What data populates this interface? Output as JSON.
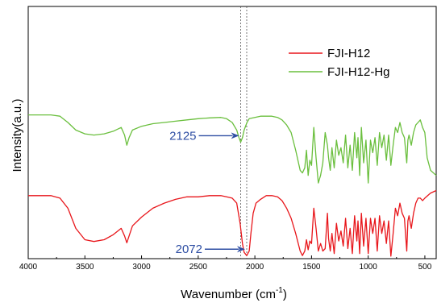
{
  "chart_data": {
    "type": "line",
    "title": "",
    "xlabel": "Wavenumber (cm",
    "xlabel_sup": "-1",
    "xlabel_end": ")",
    "ylabel": "Intensity(a.u.)",
    "xlim": [
      4000,
      400
    ],
    "x_reversed": true,
    "xticks": [
      4000,
      3500,
      3000,
      2500,
      2000,
      1500,
      1000,
      500
    ],
    "y_ticks_shown": false,
    "grid": false,
    "legend_position": "top-right",
    "series": [
      {
        "name": "FJI-H12",
        "color": "#e8161b",
        "points": [
          [
            4000,
            0.25
          ],
          [
            3800,
            0.25
          ],
          [
            3720,
            0.24
          ],
          [
            3650,
            0.2
          ],
          [
            3580,
            0.12
          ],
          [
            3500,
            0.075
          ],
          [
            3420,
            0.068
          ],
          [
            3330,
            0.075
          ],
          [
            3250,
            0.095
          ],
          [
            3180,
            0.12
          ],
          [
            3150,
            0.09
          ],
          [
            3130,
            0.063
          ],
          [
            3110,
            0.09
          ],
          [
            3080,
            0.13
          ],
          [
            3000,
            0.165
          ],
          [
            2900,
            0.2
          ],
          [
            2800,
            0.22
          ],
          [
            2700,
            0.235
          ],
          [
            2600,
            0.245
          ],
          [
            2500,
            0.245
          ],
          [
            2400,
            0.25
          ],
          [
            2300,
            0.25
          ],
          [
            2250,
            0.245
          ],
          [
            2200,
            0.24
          ],
          [
            2160,
            0.22
          ],
          [
            2130,
            0.14
          ],
          [
            2110,
            0.06
          ],
          [
            2095,
            0.025
          ],
          [
            2072,
            0.012
          ],
          [
            2050,
            0.03
          ],
          [
            2035,
            0.1
          ],
          [
            2015,
            0.18
          ],
          [
            1990,
            0.22
          ],
          [
            1950,
            0.235
          ],
          [
            1900,
            0.25
          ],
          [
            1850,
            0.25
          ],
          [
            1800,
            0.245
          ],
          [
            1760,
            0.23
          ],
          [
            1720,
            0.2
          ],
          [
            1680,
            0.16
          ],
          [
            1640,
            0.1
          ],
          [
            1600,
            0.03
          ],
          [
            1580,
            0.012
          ],
          [
            1560,
            0.03
          ],
          [
            1545,
            0.075
          ],
          [
            1530,
            0.035
          ],
          [
            1515,
            0.07
          ],
          [
            1500,
            0.06
          ],
          [
            1480,
            0.2
          ],
          [
            1460,
            0.12
          ],
          [
            1440,
            0.03
          ],
          [
            1420,
            0.06
          ],
          [
            1400,
            0.03
          ],
          [
            1380,
            0.04
          ],
          [
            1360,
            0.18
          ],
          [
            1350,
            0.08
          ],
          [
            1335,
            0.03
          ],
          [
            1320,
            0.1
          ],
          [
            1300,
            0.02
          ],
          [
            1280,
            0.14
          ],
          [
            1260,
            0.07
          ],
          [
            1240,
            0.11
          ],
          [
            1220,
            0.05
          ],
          [
            1200,
            0.16
          ],
          [
            1180,
            0.04
          ],
          [
            1160,
            0.12
          ],
          [
            1140,
            0.02
          ],
          [
            1120,
            0.17
          ],
          [
            1100,
            0.07
          ],
          [
            1090,
            0.15
          ],
          [
            1075,
            0.02
          ],
          [
            1060,
            0.18
          ],
          [
            1040,
            0.05
          ],
          [
            1020,
            0.16
          ],
          [
            1000,
            0.02
          ],
          [
            980,
            0.16
          ],
          [
            960,
            0.1
          ],
          [
            940,
            0.16
          ],
          [
            920,
            0.03
          ],
          [
            900,
            0.17
          ],
          [
            880,
            0.1
          ],
          [
            860,
            0.15
          ],
          [
            840,
            0.06
          ],
          [
            820,
            0.15
          ],
          [
            800,
            0.01
          ],
          [
            780,
            0.1
          ],
          [
            760,
            0.2
          ],
          [
            740,
            0.17
          ],
          [
            720,
            0.22
          ],
          [
            700,
            0.18
          ],
          [
            680,
            0.16
          ],
          [
            660,
            0.03
          ],
          [
            650,
            0.15
          ],
          [
            640,
            0.17
          ],
          [
            620,
            0.12
          ],
          [
            600,
            0.18
          ],
          [
            580,
            0.22
          ],
          [
            560,
            0.24
          ],
          [
            540,
            0.24
          ],
          [
            520,
            0.23
          ],
          [
            500,
            0.24
          ],
          [
            450,
            0.26
          ],
          [
            400,
            0.27
          ]
        ]
      },
      {
        "name": "FJI-H12-Hg",
        "color": "#6abf3d",
        "points": [
          [
            4000,
            0.57
          ],
          [
            3800,
            0.57
          ],
          [
            3720,
            0.565
          ],
          [
            3650,
            0.54
          ],
          [
            3580,
            0.51
          ],
          [
            3500,
            0.495
          ],
          [
            3420,
            0.49
          ],
          [
            3330,
            0.495
          ],
          [
            3250,
            0.505
          ],
          [
            3180,
            0.52
          ],
          [
            3150,
            0.49
          ],
          [
            3130,
            0.45
          ],
          [
            3110,
            0.48
          ],
          [
            3080,
            0.51
          ],
          [
            3000,
            0.525
          ],
          [
            2900,
            0.535
          ],
          [
            2800,
            0.54
          ],
          [
            2700,
            0.545
          ],
          [
            2600,
            0.55
          ],
          [
            2500,
            0.555
          ],
          [
            2400,
            0.558
          ],
          [
            2300,
            0.56
          ],
          [
            2250,
            0.555
          ],
          [
            2200,
            0.54
          ],
          [
            2160,
            0.51
          ],
          [
            2140,
            0.48
          ],
          [
            2125,
            0.462
          ],
          [
            2110,
            0.48
          ],
          [
            2095,
            0.51
          ],
          [
            2070,
            0.54
          ],
          [
            2050,
            0.555
          ],
          [
            2000,
            0.56
          ],
          [
            1950,
            0.565
          ],
          [
            1900,
            0.565
          ],
          [
            1850,
            0.565
          ],
          [
            1800,
            0.56
          ],
          [
            1760,
            0.55
          ],
          [
            1720,
            0.53
          ],
          [
            1680,
            0.5
          ],
          [
            1640,
            0.43
          ],
          [
            1600,
            0.35
          ],
          [
            1580,
            0.34
          ],
          [
            1560,
            0.36
          ],
          [
            1545,
            0.43
          ],
          [
            1530,
            0.33
          ],
          [
            1515,
            0.39
          ],
          [
            1500,
            0.37
          ],
          [
            1480,
            0.52
          ],
          [
            1460,
            0.4
          ],
          [
            1440,
            0.3
          ],
          [
            1420,
            0.33
          ],
          [
            1400,
            0.38
          ],
          [
            1380,
            0.5
          ],
          [
            1360,
            0.45
          ],
          [
            1350,
            0.4
          ],
          [
            1335,
            0.35
          ],
          [
            1320,
            0.44
          ],
          [
            1300,
            0.36
          ],
          [
            1280,
            0.47
          ],
          [
            1260,
            0.41
          ],
          [
            1240,
            0.44
          ],
          [
            1220,
            0.38
          ],
          [
            1200,
            0.49
          ],
          [
            1180,
            0.36
          ],
          [
            1160,
            0.45
          ],
          [
            1140,
            0.35
          ],
          [
            1120,
            0.5
          ],
          [
            1100,
            0.4
          ],
          [
            1090,
            0.48
          ],
          [
            1075,
            0.33
          ],
          [
            1060,
            0.52
          ],
          [
            1040,
            0.38
          ],
          [
            1020,
            0.47
          ],
          [
            1000,
            0.3
          ],
          [
            980,
            0.47
          ],
          [
            960,
            0.42
          ],
          [
            940,
            0.48
          ],
          [
            920,
            0.37
          ],
          [
            900,
            0.5
          ],
          [
            880,
            0.44
          ],
          [
            860,
            0.49
          ],
          [
            840,
            0.39
          ],
          [
            820,
            0.49
          ],
          [
            800,
            0.37
          ],
          [
            780,
            0.45
          ],
          [
            760,
            0.52
          ],
          [
            740,
            0.5
          ],
          [
            720,
            0.54
          ],
          [
            700,
            0.5
          ],
          [
            680,
            0.48
          ],
          [
            660,
            0.38
          ],
          [
            650,
            0.47
          ],
          [
            640,
            0.49
          ],
          [
            620,
            0.45
          ],
          [
            600,
            0.5
          ],
          [
            580,
            0.53
          ],
          [
            560,
            0.54
          ],
          [
            540,
            0.55
          ],
          [
            520,
            0.52
          ],
          [
            500,
            0.5
          ],
          [
            480,
            0.4
          ],
          [
            450,
            0.35
          ],
          [
            400,
            0.33
          ]
        ]
      }
    ],
    "reference_lines": [
      2125,
      2072
    ],
    "annotations": [
      {
        "text": "2125",
        "x": 2125,
        "series": "FJI-H12-Hg",
        "color": "#2e4ea3"
      },
      {
        "text": "2072",
        "x": 2072,
        "series": "FJI-H12",
        "color": "#2e4ea3"
      }
    ]
  }
}
